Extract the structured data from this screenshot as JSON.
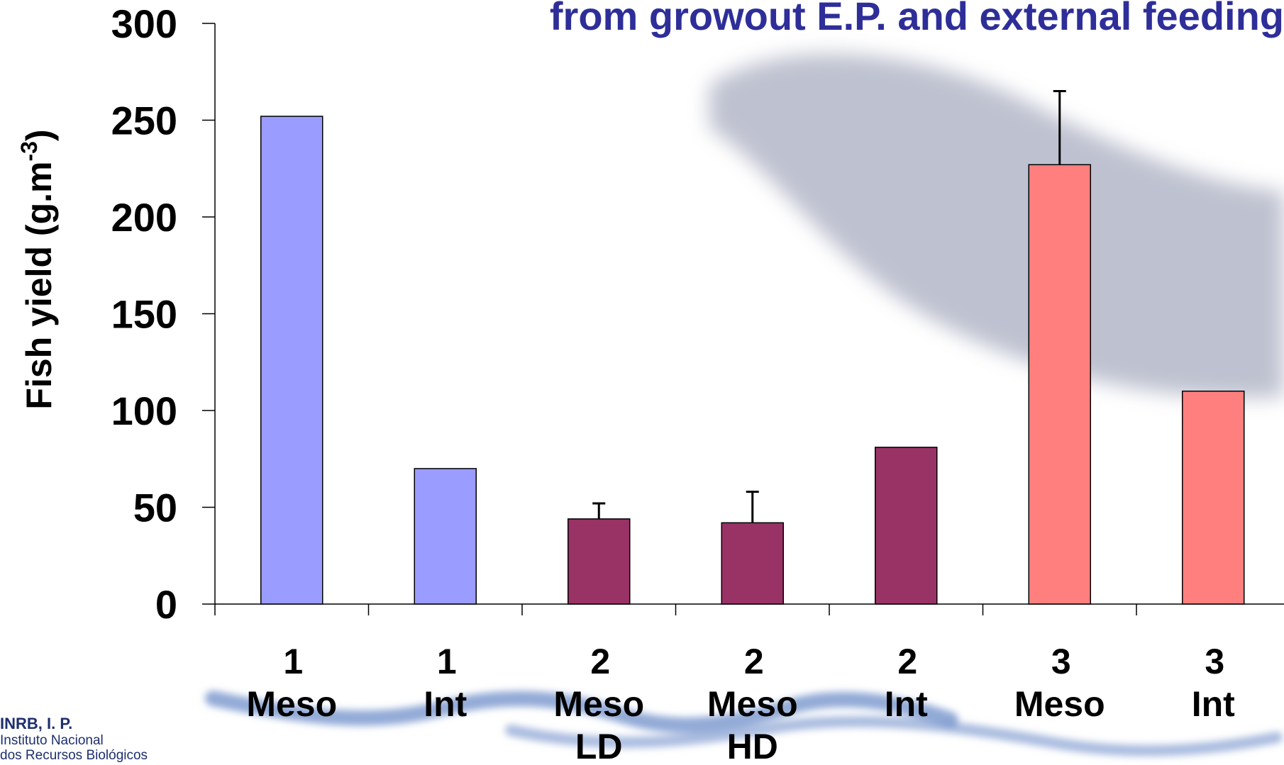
{
  "title": "from growout E.P. and external feeding",
  "colors": {
    "title": "#2e2e99",
    "axis": "#000000",
    "bar_stroke": "#000000",
    "watermark": "#b3b7c8",
    "group1": "#9b9cff",
    "group2": "#993366",
    "group3": "#ff7f7f"
  },
  "chart_data": {
    "type": "bar",
    "ylabel": "Fish yield (g.m-3)",
    "ylabel_base": "Fish yield (g.m",
    "ylabel_sup": "-3",
    "ylabel_tail": ")",
    "ylim": [
      0,
      300
    ],
    "yticks": [
      0,
      50,
      100,
      150,
      200,
      250,
      300
    ],
    "grid": false,
    "categories": [
      {
        "group": "1",
        "label": [
          "Meso"
        ],
        "value": 252,
        "error": null,
        "color_key": "group1"
      },
      {
        "group": "1",
        "label": [
          "Int"
        ],
        "value": 70,
        "error": null,
        "color_key": "group1"
      },
      {
        "group": "2",
        "label": [
          "Meso",
          "LD"
        ],
        "value": 44,
        "error": 8,
        "color_key": "group2"
      },
      {
        "group": "2",
        "label": [
          "Meso",
          "HD"
        ],
        "value": 42,
        "error": 16,
        "color_key": "group2"
      },
      {
        "group": "2",
        "label": [
          "Int"
        ],
        "value": 81,
        "error": null,
        "color_key": "group2"
      },
      {
        "group": "3",
        "label": [
          "Meso"
        ],
        "value": 227,
        "error": 38,
        "color_key": "group3"
      },
      {
        "group": "3",
        "label": [
          "Int"
        ],
        "value": 110,
        "error": null,
        "color_key": "group3"
      }
    ]
  },
  "logo": {
    "org": "INRB, I. P.",
    "line1": "Instituto Nacional",
    "line2": "dos Recursos Biológicos"
  }
}
